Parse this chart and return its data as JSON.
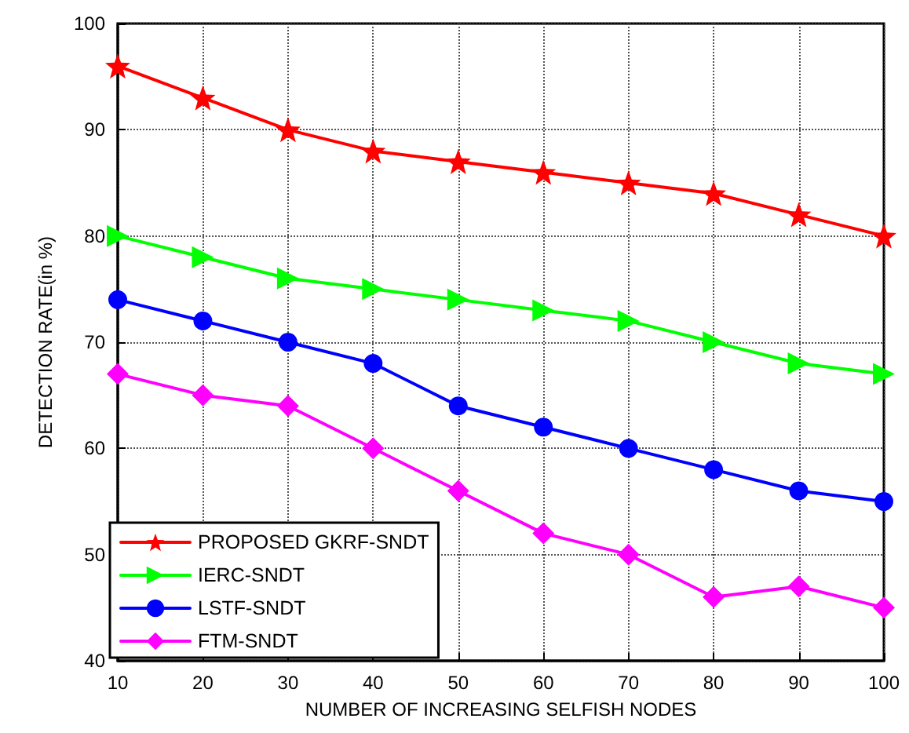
{
  "chart_data": {
    "type": "line",
    "xlabel": "NUMBER OF INCREASING SELFISH NODES",
    "ylabel": "DETECTION RATE(in %)",
    "x": [
      10,
      20,
      30,
      40,
      50,
      60,
      70,
      80,
      90,
      100
    ],
    "series": [
      {
        "name": "PROPOSED GKRF-SNDT",
        "color": "#ff0000",
        "marker": "star",
        "values": [
          96,
          93,
          90,
          88,
          87,
          86,
          85,
          84,
          82,
          80
        ]
      },
      {
        "name": "IERC-SNDT",
        "color": "#00ff00",
        "marker": "triangle",
        "values": [
          80,
          78,
          76,
          75,
          74,
          73,
          72,
          70,
          68,
          67
        ]
      },
      {
        "name": "LSTF-SNDT",
        "color": "#0000ff",
        "marker": "circle",
        "values": [
          74,
          72,
          70,
          68,
          64,
          62,
          60,
          58,
          56,
          55
        ]
      },
      {
        "name": "FTM-SNDT",
        "color": "#ff00ff",
        "marker": "diamond",
        "values": [
          67,
          65,
          64,
          60,
          56,
          52,
          50,
          46,
          47,
          45
        ]
      }
    ],
    "xlim": [
      10,
      100
    ],
    "xticks": [
      10,
      20,
      30,
      40,
      50,
      60,
      70,
      80,
      90,
      100
    ],
    "ylim": [
      40,
      100
    ],
    "yticks": [
      40,
      50,
      60,
      70,
      80,
      90,
      100
    ],
    "grid": true,
    "legend": "bottom left",
    "line_style": "solid"
  }
}
